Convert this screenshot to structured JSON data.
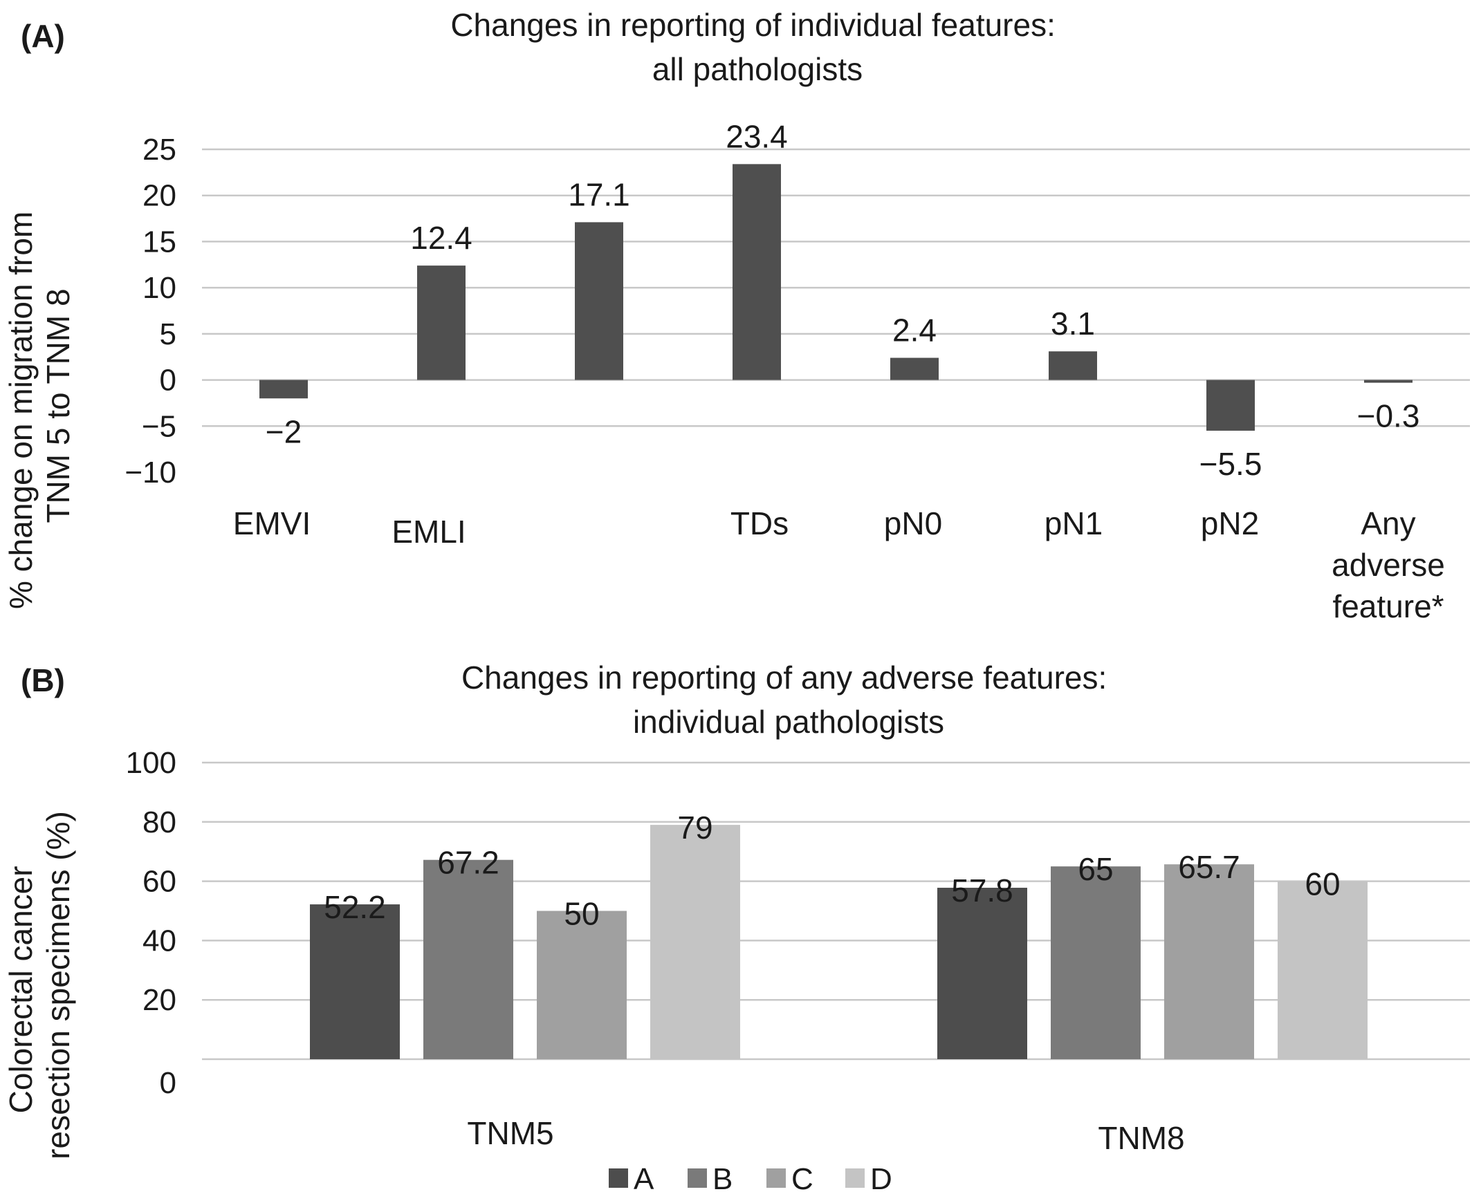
{
  "chart_data": [
    {
      "type": "bar",
      "panel_label": "(A)",
      "title": [
        "Changes in reporting of individual features:",
        "all pathologists"
      ],
      "ylabel": [
        "% change on migration from",
        "TNM 5 to TNM 8"
      ],
      "xlabel": "",
      "ylim": [
        -10,
        25
      ],
      "yticks": [
        25,
        20,
        15,
        10,
        5,
        0,
        -5,
        -10
      ],
      "ytick_labels": [
        "25",
        "20",
        "15",
        "10",
        "5",
        "0",
        "−5",
        "−10"
      ],
      "grid": true,
      "bar_color": "#4f4f4f",
      "categories": [
        [
          "EMVI"
        ],
        [
          "EMLI"
        ],
        [],
        [
          "TDs"
        ],
        [
          "pN0"
        ],
        [
          "pN1"
        ],
        [
          "pN2"
        ],
        [
          "Any",
          "adverse",
          "feature*"
        ]
      ],
      "values": [
        -2,
        12.4,
        17.1,
        23.4,
        2.4,
        3.1,
        -5.5,
        -0.3
      ],
      "value_labels": [
        "−2",
        "12.4",
        "17.1",
        "23.4",
        "2.4",
        "3.1",
        "−5.5",
        "−0.3"
      ]
    },
    {
      "type": "bar",
      "panel_label": "(B)",
      "title": [
        "Changes in reporting of any adverse features:",
        "individual pathologists"
      ],
      "ylabel": [
        "Colorectal cancer",
        "resection specimens (%)"
      ],
      "xlabel": "",
      "ylim": [
        0,
        100
      ],
      "yticks": [
        100,
        80,
        60,
        40,
        20,
        0
      ],
      "ytick_labels": [
        "100",
        "80",
        "60",
        "40",
        "20",
        "0"
      ],
      "grid": true,
      "legend_position": "bottom",
      "categories": [
        "TNM5",
        "TNM8"
      ],
      "series": [
        {
          "name": "A",
          "color": "#4d4d4d",
          "values": [
            52.2,
            57.8
          ],
          "value_labels": [
            "52.2",
            "57.8"
          ]
        },
        {
          "name": "B",
          "color": "#7a7a7a",
          "values": [
            67.2,
            65
          ],
          "value_labels": [
            "67.2",
            "65"
          ]
        },
        {
          "name": "C",
          "color": "#a0a0a0",
          "values": [
            50,
            65.7
          ],
          "value_labels": [
            "50",
            "65.7"
          ]
        },
        {
          "name": "D",
          "color": "#c4c4c4",
          "values": [
            79,
            60
          ],
          "value_labels": [
            "79",
            "60"
          ]
        }
      ]
    }
  ]
}
